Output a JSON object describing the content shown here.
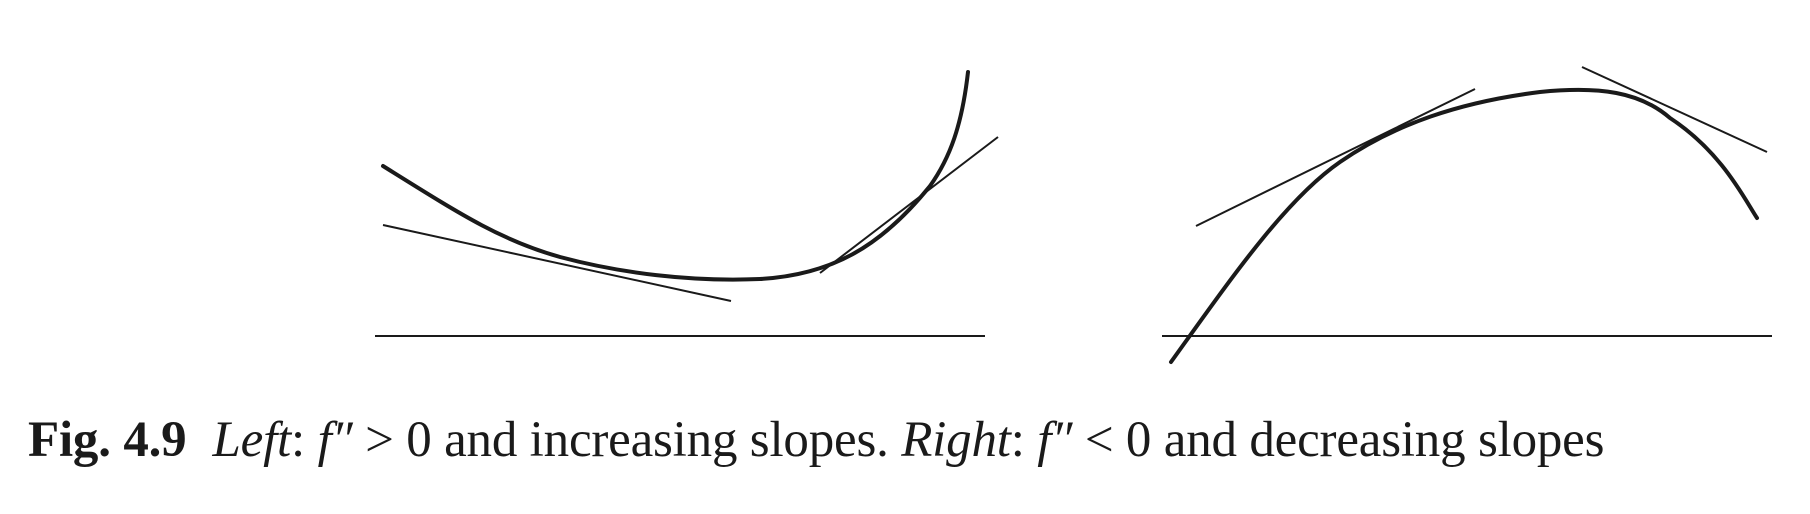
{
  "figure": {
    "stroke_color": "#1a1a1a",
    "panels": [
      {
        "name": "left",
        "curve": "convex",
        "tangent_slopes": "increasing"
      },
      {
        "name": "right",
        "curve": "concave",
        "tangent_slopes": "decreasing"
      }
    ]
  },
  "caption": {
    "figure_label": "Fig. 4.9",
    "left_word": "Left",
    "left_condition_fn": "f″",
    "left_condition_rel": " > 0 and increasing slopes. ",
    "right_word": "Right",
    "right_condition_fn": "f″",
    "right_condition_rel": " < 0 and decreasing slopes"
  }
}
